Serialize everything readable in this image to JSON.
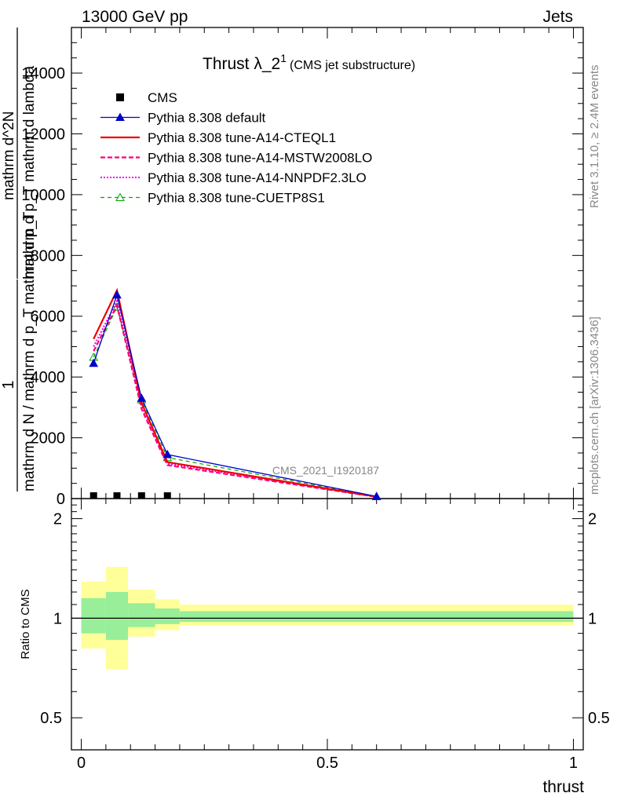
{
  "header": {
    "left": "13000 GeV pp",
    "right": "Jets"
  },
  "title": {
    "main": "Thrust λ_2",
    "superscript": "1",
    "suffix": "(CMS jet substructure)"
  },
  "side_labels": {
    "rivet": "Rivet 3.1.10, ≥ 2.4M events",
    "mcplots": "mcplots.cern.ch [arXiv:1306.3436]"
  },
  "watermark": "CMS_2021_I1920187",
  "ylabel_main": {
    "frac_one": "1",
    "denominator_main": "mathrm d N / mathrm d p_T mathrm d p_T",
    "numerator": "mathrm d^2N",
    "denominator": "mathrm d p_T mathrm d lambda"
  },
  "ylabel_ratio": "Ratio to CMS",
  "xlabel": "thrust",
  "legend": [
    {
      "label": "CMS",
      "color": "#000000",
      "style": "square"
    },
    {
      "label": "Pythia 8.308 default",
      "color": "#0000cc",
      "style": "solid-triangle"
    },
    {
      "label": "Pythia 8.308 tune-A14-CTEQL1",
      "color": "#ee0000",
      "style": "solid"
    },
    {
      "label": "Pythia 8.308 tune-A14-MSTW2008LO",
      "color": "#ff0077",
      "style": "dashed"
    },
    {
      "label": "Pythia 8.308 tune-A14-NNPDF2.3LO",
      "color": "#ee00ee",
      "style": "dotted"
    },
    {
      "label": "Pythia 8.308 tune-CUETP8S1",
      "color": "#00aa00",
      "style": "dashed-open-triangle"
    }
  ],
  "chart_data": [
    {
      "type": "line",
      "panel": "main",
      "xlim": [
        -0.02,
        1.02
      ],
      "ylim": [
        0,
        15500
      ],
      "yticks": [
        0,
        2000,
        4000,
        6000,
        8000,
        10000,
        12000,
        14000
      ],
      "ytick_labels": [
        "0",
        "2000",
        "4000",
        "6000",
        "8000",
        "10000",
        "12000",
        "14000"
      ],
      "bin_edges": [
        0,
        0.05,
        0.095,
        0.15,
        0.2,
        1.0
      ],
      "x": [
        0.025,
        0.0725,
        0.1225,
        0.175,
        0.6
      ],
      "series": [
        {
          "name": "CMS",
          "values": [
            0,
            0,
            0,
            0,
            0
          ]
        },
        {
          "name": "Pythia 8.308 default",
          "values": [
            4450,
            6700,
            3300,
            1450,
            70
          ]
        },
        {
          "name": "Pythia 8.308 tune-A14-CTEQL1",
          "values": [
            5250,
            6850,
            3150,
            1200,
            60
          ]
        },
        {
          "name": "Pythia 8.308 tune-A14-MSTW2008LO",
          "values": [
            4850,
            6350,
            2950,
            1100,
            55
          ]
        },
        {
          "name": "Pythia 8.308 tune-A14-NNPDF2.3LO",
          "values": [
            5000,
            6500,
            3050,
            1150,
            55
          ]
        },
        {
          "name": "Pythia 8.308 tune-CUETP8S1",
          "values": [
            4650,
            6300,
            3250,
            1350,
            65
          ]
        }
      ]
    },
    {
      "type": "area",
      "panel": "ratio",
      "xlim": [
        -0.02,
        1.02
      ],
      "ylim": [
        0.4,
        2.3
      ],
      "log_y": true,
      "yticks": [
        0.5,
        1,
        2
      ],
      "ytick_labels": [
        "0.5",
        "1",
        "2"
      ],
      "xticks": [
        0,
        0.5,
        1
      ],
      "xtick_labels": [
        "0",
        "0.5",
        "1"
      ],
      "bin_edges": [
        0,
        0.05,
        0.095,
        0.15,
        0.2,
        1.0
      ],
      "band_outer_low": [
        0.81,
        0.7,
        0.88,
        0.92,
        0.95
      ],
      "band_outer_high": [
        1.29,
        1.43,
        1.22,
        1.14,
        1.1
      ],
      "band_inner_low": [
        0.9,
        0.86,
        0.94,
        0.96,
        0.975
      ],
      "band_inner_high": [
        1.15,
        1.2,
        1.11,
        1.07,
        1.05
      ],
      "reference": 1,
      "colors": {
        "outer": "#ffff99",
        "inner": "#99ee99"
      }
    }
  ]
}
